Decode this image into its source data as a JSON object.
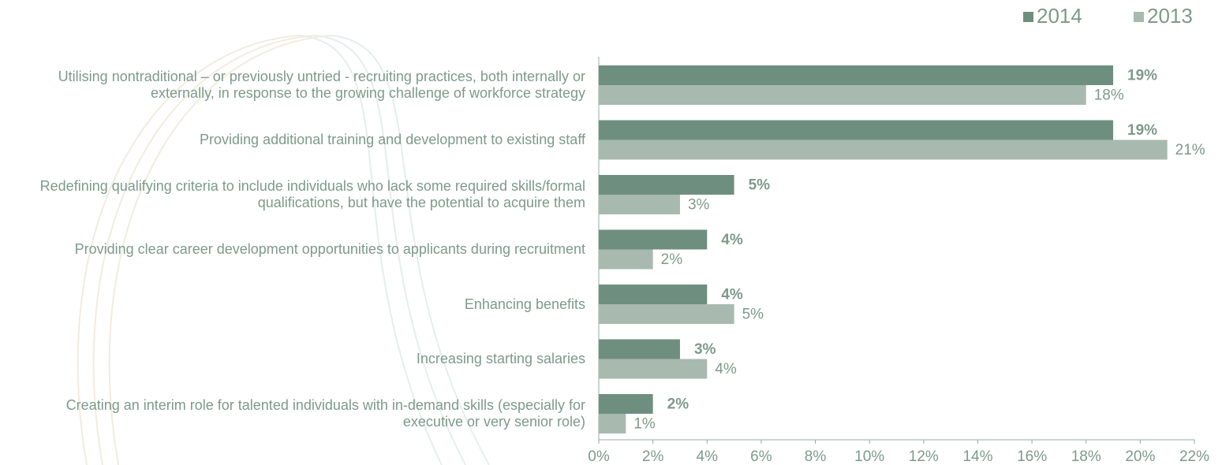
{
  "chart_data": {
    "type": "bar",
    "orientation": "horizontal",
    "categories": [
      "Utilising nontraditional – or previously untried - recruiting practices, both internally or externally, in response to the growing challenge of workforce strategy",
      "Providing additional training and development to existing staff",
      "Redefining qualifying criteria to include individuals who lack some required skills/formal qualifications, but have the potential to acquire them",
      "Providing clear career development opportunities to applicants during recruitment",
      "Enhancing benefits",
      "Increasing starting salaries",
      "Creating an interim role for talented individuals with in-demand skills (especially for executive or very senior role)"
    ],
    "series": [
      {
        "name": "2014",
        "color": "#6e8f80",
        "values": [
          19,
          19,
          5,
          4,
          4,
          3,
          2
        ],
        "value_labels": [
          "19%",
          "19%",
          "5%",
          "4%",
          "4%",
          "3%",
          "2%"
        ]
      },
      {
        "name": "2013",
        "color": "#a8bab0",
        "values": [
          18,
          21,
          3,
          2,
          5,
          4,
          1
        ],
        "value_labels": [
          "18%",
          "21%",
          "3%",
          "2%",
          "5%",
          "4%",
          "1%"
        ]
      }
    ],
    "xlim": [
      0,
      22
    ],
    "xticks": [
      {
        "value": 0,
        "label": "0%"
      },
      {
        "value": 2,
        "label": "2%"
      },
      {
        "value": 4,
        "label": "4%"
      },
      {
        "value": 6,
        "label": "6%"
      },
      {
        "value": 8,
        "label": "8%"
      },
      {
        "value": 10,
        "label": "10%"
      },
      {
        "value": 12,
        "label": "12%"
      },
      {
        "value": 14,
        "label": "14%"
      },
      {
        "value": 16,
        "label": "16%"
      },
      {
        "value": 18,
        "label": "18%"
      },
      {
        "value": 20,
        "label": "20%"
      },
      {
        "value": 22,
        "label": "22%"
      }
    ],
    "legend": "top-right",
    "grid": false
  }
}
